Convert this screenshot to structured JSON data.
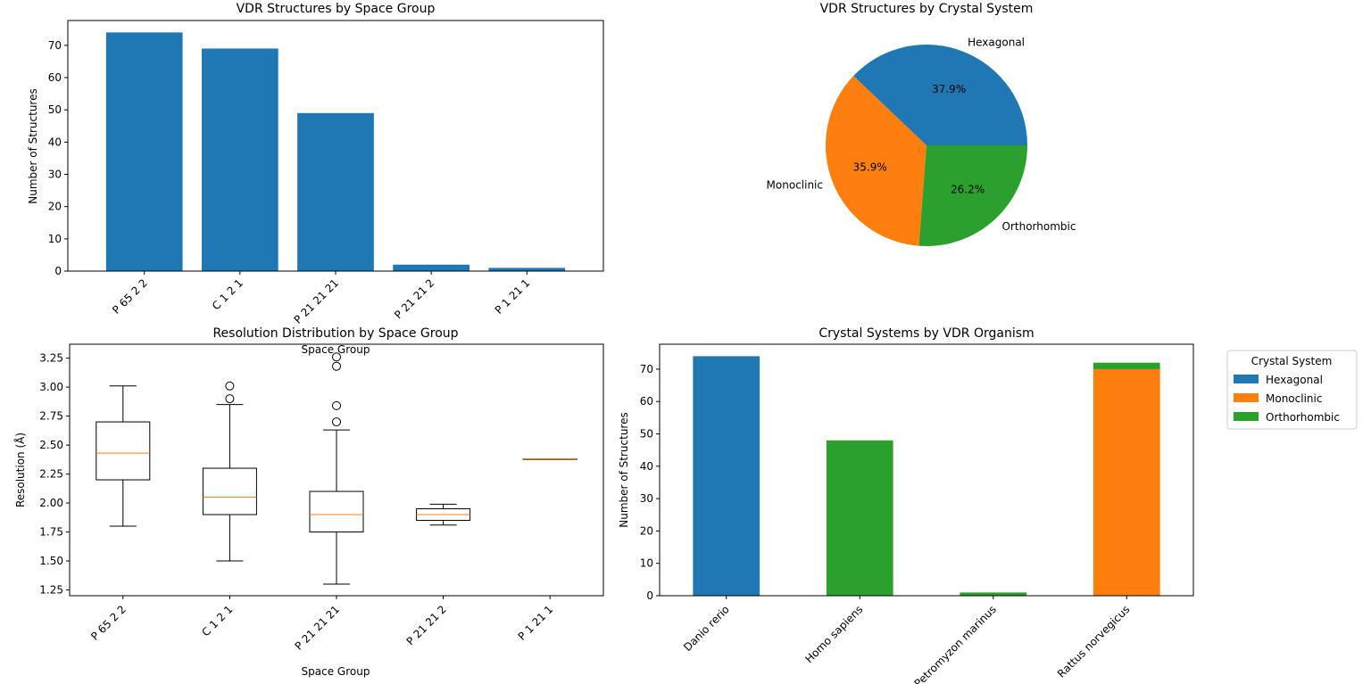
{
  "colors": {
    "blue": "#1f77b4",
    "orange": "#ff7f0e",
    "green": "#2ca02c"
  },
  "chart_data": [
    {
      "type": "bar",
      "title": "VDR Structures by Space Group",
      "xlabel": "Space Group",
      "ylabel": "Number of Structures",
      "categories": [
        "P 65 2 2",
        "C 1 2 1",
        "P 21 21 21",
        "P 21 21 2",
        "P 1 21 1"
      ],
      "values": [
        74,
        69,
        49,
        2,
        1
      ],
      "ylim": [
        0,
        77.7
      ],
      "yticks": [
        0,
        10,
        20,
        30,
        40,
        50,
        60,
        70
      ],
      "grid": false
    },
    {
      "type": "pie",
      "title": "VDR Structures by Crystal System",
      "slices": [
        {
          "label": "Hexagonal",
          "pct": 37.9,
          "pct_label": "37.9%"
        },
        {
          "label": "Monoclinic",
          "pct": 35.9,
          "pct_label": "35.9%"
        },
        {
          "label": "Orthorhombic",
          "pct": 26.2,
          "pct_label": "26.2%"
        }
      ]
    },
    {
      "type": "box",
      "title": "Resolution Distribution by Space Group",
      "xlabel": "Space Group",
      "ylabel": "Resolution (Å)",
      "categories": [
        "P 65 2 2",
        "C 1 2 1",
        "P 21 21 21",
        "P 21 21 2",
        "P 1 21 1"
      ],
      "boxes": [
        {
          "whislo": 1.8,
          "q1": 2.2,
          "med": 2.43,
          "q3": 2.7,
          "whishi": 3.01,
          "fliers": []
        },
        {
          "whislo": 1.5,
          "q1": 1.9,
          "med": 2.05,
          "q3": 2.3,
          "whishi": 2.85,
          "fliers": [
            2.9,
            3.01
          ]
        },
        {
          "whislo": 1.3,
          "q1": 1.75,
          "med": 1.9,
          "q3": 2.1,
          "whishi": 2.63,
          "fliers": [
            2.7,
            2.84,
            3.18,
            3.26
          ]
        },
        {
          "whislo": 1.81,
          "q1": 1.85,
          "med": 1.9,
          "q3": 1.95,
          "whishi": 1.99,
          "fliers": []
        },
        {
          "whislo": 2.38,
          "q1": 2.38,
          "med": 2.38,
          "q3": 2.38,
          "whishi": 2.38,
          "fliers": []
        }
      ],
      "ylim": [
        1.2,
        3.37
      ],
      "yticks": [
        1.25,
        1.5,
        1.75,
        2.0,
        2.25,
        2.5,
        2.75,
        3.0,
        3.25
      ],
      "ytick_labels": [
        "1.25",
        "1.50",
        "1.75",
        "2.00",
        "2.25",
        "2.50",
        "2.75",
        "3.00",
        "3.25"
      ],
      "grid": false
    },
    {
      "type": "stacked-bar",
      "title": "Crystal Systems by VDR Organism",
      "ylabel": "Number of Structures",
      "categories": [
        "Danio rerio",
        "Homo sapiens",
        "Petromyzon marinus",
        "Rattus norvegicus"
      ],
      "series": [
        {
          "name": "Hexagonal",
          "values": [
            74,
            0,
            0,
            0
          ]
        },
        {
          "name": "Monoclinic",
          "values": [
            0,
            0,
            0,
            70
          ]
        },
        {
          "name": "Orthorhombic",
          "values": [
            0,
            48,
            1,
            2
          ]
        }
      ],
      "ylim": [
        0,
        77.7
      ],
      "yticks": [
        0,
        10,
        20,
        30,
        40,
        50,
        60,
        70
      ],
      "legend": {
        "title": "Crystal System",
        "position": "outside-right"
      },
      "grid": false
    }
  ]
}
